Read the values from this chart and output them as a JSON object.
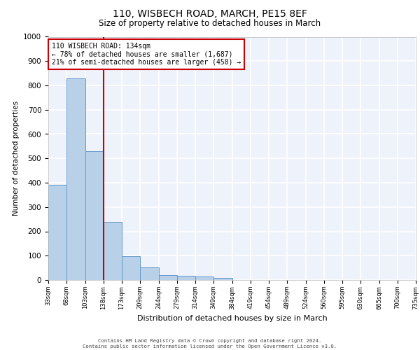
{
  "title1": "110, WISBECH ROAD, MARCH, PE15 8EF",
  "title2": "Size of property relative to detached houses in March",
  "xlabel": "Distribution of detached houses by size in March",
  "ylabel": "Number of detached properties",
  "bar_color": "#b8d0e8",
  "bar_edge_color": "#6699cc",
  "background_color": "#eef2fa",
  "grid_color": "#ffffff",
  "bin_labels": [
    "33sqm",
    "68sqm",
    "103sqm",
    "138sqm",
    "173sqm",
    "209sqm",
    "244sqm",
    "279sqm",
    "314sqm",
    "349sqm",
    "384sqm",
    "419sqm",
    "454sqm",
    "489sqm",
    "524sqm",
    "560sqm",
    "595sqm",
    "630sqm",
    "665sqm",
    "700sqm",
    "735sqm"
  ],
  "bar_heights": [
    390,
    830,
    530,
    240,
    97,
    52,
    20,
    17,
    15,
    10,
    0,
    0,
    0,
    0,
    0,
    0,
    0,
    0,
    0,
    0
  ],
  "ylim": [
    0,
    1000
  ],
  "yticks": [
    0,
    100,
    200,
    300,
    400,
    500,
    600,
    700,
    800,
    900,
    1000
  ],
  "annotation_line1": "110 WISBECH ROAD: 134sqm",
  "annotation_line2": "← 78% of detached houses are smaller (1,687)",
  "annotation_line3": "21% of semi-detached houses are larger (458) →",
  "annotation_box_color": "#cc0000",
  "annotation_text_color": "#000000",
  "footer1": "Contains HM Land Registry data © Crown copyright and database right 2024.",
  "footer2": "Contains public sector information licensed under the Open Government Licence v3.0.",
  "vline_position": 3,
  "n_bins": 20
}
